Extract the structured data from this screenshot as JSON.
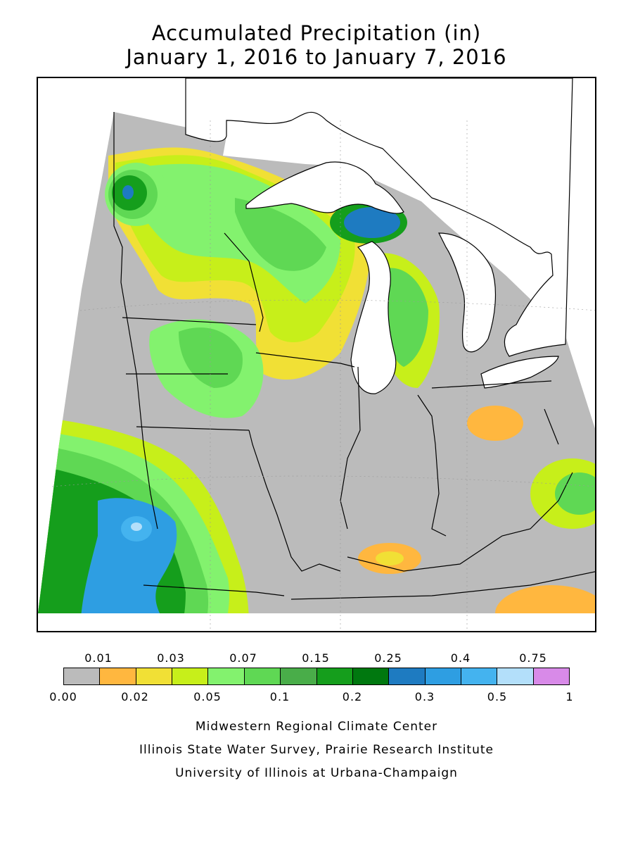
{
  "map": {
    "title_line1": "Accumulated Precipitation (in)",
    "title_line2": "January 1, 2016 to January 7, 2016",
    "water_color": "#ffffff",
    "no_data_color": "#ffffff"
  },
  "legend": {
    "top_labels": [
      "0.01",
      "0.03",
      "0.07",
      "0.15",
      "0.25",
      "0.4",
      "0.75"
    ],
    "bottom_labels": [
      "0.00",
      "0.02",
      "0.05",
      "0.1",
      "0.2",
      "0.3",
      "0.5",
      "1"
    ],
    "colors": [
      "#bbbbbb",
      "#ffb73f",
      "#f1e035",
      "#c7ef1a",
      "#83f26e",
      "#5fd854",
      "#49ad49",
      "#159e1c",
      "#00780f",
      "#1e7bc1",
      "#2e9ee2",
      "#44b3ef",
      "#b3dffa",
      "#d88ae8"
    ]
  },
  "credits": {
    "line1": "Midwestern Regional Climate Center",
    "line2": "Illinois State Water Survey, Prairie Research Institute",
    "line3": "University of Illinois at Urbana-Champaign"
  }
}
